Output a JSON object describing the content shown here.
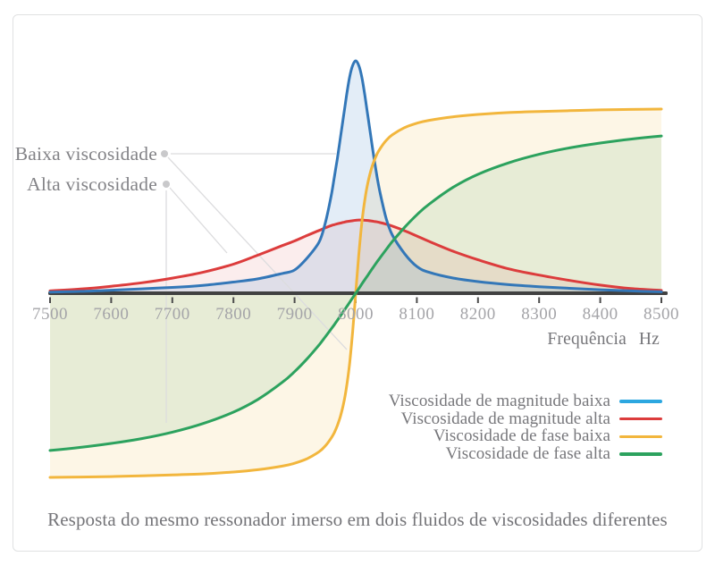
{
  "chart_data": {
    "type": "line",
    "title": "Resposta do mesmo ressonador imerso em dois fluidos de viscosidades diferentes",
    "xlabel": "Frequência Hz",
    "x_unit": "Hz",
    "xlim": [
      7500,
      8500
    ],
    "x_ticks": [
      7500,
      7600,
      7700,
      7800,
      7900,
      8000,
      8100,
      8200,
      8300,
      8400,
      8500
    ],
    "resonance_frequency_hz": 8000,
    "grid": false,
    "legend_position": "bottom-right",
    "ylim_magnitude": [
      0,
      1
    ],
    "ylim_phase_deg": [
      -90,
      90
    ],
    "annotations": [
      {
        "text": "Baixa viscosidade",
        "points_to": [
          "Viscosidade de magnitude baixa",
          "Viscosidade de fase baixa"
        ]
      },
      {
        "text": "Alta viscosidade",
        "points_to": [
          "Viscosidade de magnitude alta",
          "Viscosidade de fase alta"
        ]
      }
    ],
    "x": [
      7500,
      7550,
      7600,
      7650,
      7700,
      7750,
      7800,
      7840,
      7880,
      7900,
      7920,
      7940,
      7950,
      7960,
      7965,
      7970,
      7975,
      7980,
      7985,
      7990,
      7995,
      8000,
      8005,
      8010,
      8015,
      8020,
      8025,
      8030,
      8035,
      8040,
      8050,
      8060,
      8080,
      8100,
      8120,
      8160,
      8200,
      8250,
      8300,
      8350,
      8400,
      8450,
      8500
    ],
    "series": [
      {
        "name": "Viscosidade de magnitude baixa",
        "kind": "magnitude",
        "unit": "normalized amplitude",
        "color": "#3377b8",
        "legend_color": "#2ca7e0",
        "fill": "rgba(100,155,213,0.18)",
        "values": [
          0.005,
          0.008,
          0.013,
          0.019,
          0.025,
          0.034,
          0.048,
          0.062,
          0.085,
          0.1,
          0.15,
          0.22,
          0.3,
          0.42,
          0.5,
          0.58,
          0.67,
          0.76,
          0.85,
          0.93,
          0.98,
          1.0,
          0.98,
          0.93,
          0.85,
          0.76,
          0.67,
          0.58,
          0.5,
          0.43,
          0.32,
          0.25,
          0.17,
          0.115,
          0.09,
          0.065,
          0.05,
          0.037,
          0.028,
          0.021,
          0.015,
          0.01,
          0.006
        ]
      },
      {
        "name": "Viscosidade de magnitude alta",
        "kind": "magnitude",
        "unit": "normalized amplitude",
        "color": "#dc3c3c",
        "fill": "rgba(220,80,80,0.10)",
        "values": [
          0.01,
          0.018,
          0.03,
          0.045,
          0.065,
          0.09,
          0.125,
          0.164,
          0.205,
          0.225,
          0.248,
          0.27,
          0.281,
          0.291,
          0.295,
          0.299,
          0.302,
          0.305,
          0.308,
          0.31,
          0.312,
          0.314,
          0.315,
          0.315,
          0.314,
          0.313,
          0.311,
          0.309,
          0.307,
          0.304,
          0.297,
          0.289,
          0.269,
          0.246,
          0.223,
          0.18,
          0.144,
          0.105,
          0.078,
          0.055,
          0.035,
          0.02,
          0.012
        ]
      },
      {
        "name": "Viscosidade de fase baixa",
        "kind": "phase",
        "unit": "degrees",
        "color": "#f2b63d",
        "fill": "rgba(242,187,60,0.13)",
        "values": [
          -88.3,
          -88.1,
          -87.9,
          -87.5,
          -87.1,
          -86.6,
          -85.7,
          -84.6,
          -82.9,
          -81.5,
          -79.4,
          -76.0,
          -73.3,
          -69.4,
          -66.8,
          -63.4,
          -59.0,
          -53.1,
          -45.0,
          -33.7,
          -18.4,
          0,
          18.4,
          33.7,
          45.0,
          53.1,
          59.0,
          63.4,
          66.8,
          69.4,
          73.3,
          76.0,
          79.4,
          81.5,
          82.9,
          84.6,
          85.7,
          86.6,
          87.1,
          87.5,
          87.9,
          88.1,
          88.3
        ]
      },
      {
        "name": "Viscosidade de fase alta",
        "kind": "phase",
        "unit": "degrees",
        "color": "#2ca25e",
        "fill": "rgba(70,165,100,0.12)",
        "values": [
          -75.4,
          -73.9,
          -72.0,
          -69.7,
          -66.6,
          -62.5,
          -57.0,
          -50.9,
          -42.7,
          -37.6,
          -31.6,
          -24.8,
          -21.0,
          -17.1,
          -15.1,
          -13.0,
          -10.9,
          -8.7,
          -6.6,
          -4.4,
          -2.2,
          0,
          2.2,
          4.4,
          6.6,
          8.7,
          10.9,
          13.0,
          15.1,
          17.1,
          21.0,
          24.8,
          31.6,
          37.6,
          42.7,
          50.9,
          57.0,
          62.5,
          66.6,
          69.7,
          72.0,
          73.9,
          75.4
        ]
      }
    ]
  }
}
